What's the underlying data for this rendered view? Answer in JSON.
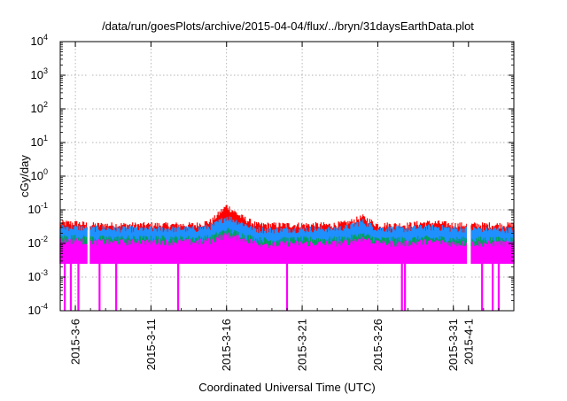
{
  "chart_data": {
    "type": "area",
    "title": "/data/run/goesPlots/archive/2015-04-04/flux/../bryn/31daysEarthData.plot",
    "xlabel": "Coordinated Universal Time (UTC)",
    "ylabel": "cGy/day",
    "yscale": "log",
    "ylim_exponents": [
      -4,
      4
    ],
    "xlim": [
      "2015-03-05",
      "2015-04-04"
    ],
    "grid": true,
    "y_ticks": [
      {
        "base": "10",
        "exp": "-4"
      },
      {
        "base": "10",
        "exp": "-3"
      },
      {
        "base": "10",
        "exp": "-2"
      },
      {
        "base": "10",
        "exp": "-1"
      },
      {
        "base": "10",
        "exp": "0"
      },
      {
        "base": "10",
        "exp": "1"
      },
      {
        "base": "10",
        "exp": "2"
      },
      {
        "base": "10",
        "exp": "3"
      },
      {
        "base": "10",
        "exp": "4"
      }
    ],
    "x_ticks": [
      "2015-3-6",
      "2015-3-11",
      "2015-3-16",
      "2015-3-21",
      "2015-3-26",
      "2015-3-31",
      "2015-4-1"
    ],
    "series": [
      {
        "color": "#ff0000",
        "days": [
          0,
          1,
          2,
          3,
          4,
          5,
          6,
          7,
          8,
          9,
          10,
          11,
          12,
          13,
          14,
          15,
          16,
          17,
          18,
          19,
          20,
          21,
          22,
          23,
          24,
          25,
          26,
          27,
          28,
          29,
          30
        ],
        "values": [
          0.04,
          0.04,
          0.035,
          0.035,
          0.035,
          0.035,
          0.035,
          0.035,
          0.035,
          0.035,
          0.045,
          0.13,
          0.06,
          0.035,
          0.035,
          0.035,
          0.035,
          0.035,
          0.035,
          0.04,
          0.06,
          0.035,
          0.035,
          0.035,
          0.04,
          0.04,
          0.035,
          0.035,
          0.035,
          0.035,
          0.035
        ]
      },
      {
        "color": "#1e90ff",
        "days": [
          0,
          1,
          2,
          3,
          4,
          5,
          6,
          7,
          8,
          9,
          10,
          11,
          12,
          13,
          14,
          15,
          16,
          17,
          18,
          19,
          20,
          21,
          22,
          23,
          24,
          25,
          26,
          27,
          28,
          29,
          30
        ],
        "values": [
          0.03,
          0.03,
          0.028,
          0.028,
          0.027,
          0.027,
          0.027,
          0.027,
          0.027,
          0.027,
          0.032,
          0.06,
          0.04,
          0.026,
          0.025,
          0.026,
          0.026,
          0.027,
          0.027,
          0.03,
          0.045,
          0.027,
          0.027,
          0.027,
          0.03,
          0.03,
          0.027,
          0.027,
          0.027,
          0.026,
          0.026
        ]
      },
      {
        "color": "#00a060",
        "days": [
          0,
          1,
          2,
          3,
          4,
          5,
          6,
          7,
          8,
          9,
          10,
          11,
          12,
          13,
          14,
          15,
          16,
          17,
          18,
          19,
          20,
          21,
          22,
          23,
          24,
          25,
          26,
          27,
          28,
          29,
          30
        ],
        "values": [
          0.015,
          0.015,
          0.014,
          0.014,
          0.014,
          0.014,
          0.014,
          0.014,
          0.014,
          0.014,
          0.015,
          0.025,
          0.018,
          0.013,
          0.012,
          0.013,
          0.013,
          0.013,
          0.013,
          0.014,
          0.018,
          0.013,
          0.013,
          0.013,
          0.014,
          0.014,
          0.013,
          0.013,
          0.013,
          0.013,
          0.013
        ]
      },
      {
        "color": "#ff00ff",
        "days": [
          0,
          1,
          2,
          3,
          4,
          5,
          6,
          7,
          8,
          9,
          10,
          11,
          12,
          13,
          14,
          15,
          16,
          17,
          18,
          19,
          20,
          21,
          22,
          23,
          24,
          25,
          26,
          27,
          28,
          29,
          30
        ],
        "values": [
          0.012,
          0.012,
          0.011,
          0.011,
          0.011,
          0.011,
          0.011,
          0.011,
          0.011,
          0.011,
          0.012,
          0.018,
          0.014,
          0.01,
          0.009,
          0.01,
          0.01,
          0.01,
          0.01,
          0.011,
          0.014,
          0.01,
          0.01,
          0.01,
          0.011,
          0.011,
          0.01,
          0.01,
          0.01,
          0.01,
          0.01
        ],
        "floor": 0.0025,
        "dropouts_days": [
          0.3,
          0.7,
          1.2,
          2.6,
          3.7,
          7.8,
          15.0,
          22.6,
          22.8,
          27.9,
          28.6,
          29.0
        ]
      }
    ]
  }
}
